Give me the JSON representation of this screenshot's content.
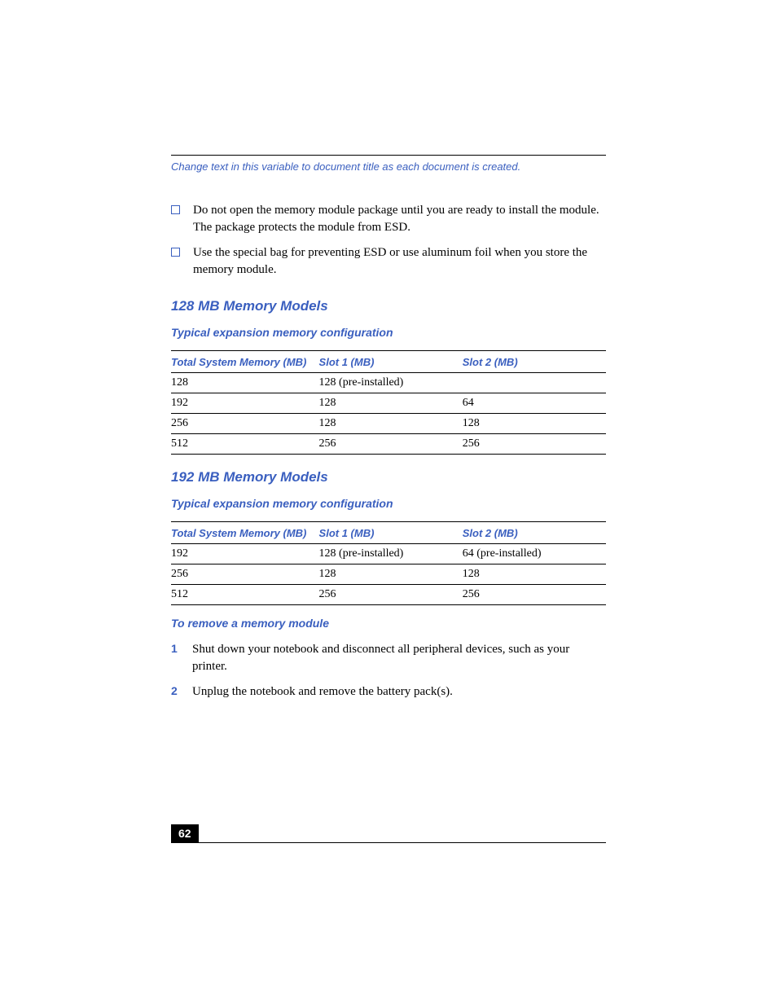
{
  "colors": {
    "accent": "#3a5fbf",
    "text": "#000000",
    "background": "#ffffff",
    "rule": "#000000"
  },
  "header": {
    "variable_text": "Change text in this variable to document title as each document is created."
  },
  "bullets": [
    "Do not open the memory module package until you are ready to install the module. The package protects the module from ESD.",
    "Use the special bag for preventing ESD or use aluminum foil when you store the memory module."
  ],
  "section1": {
    "title": "128 MB Memory Models",
    "subtitle": "Typical expansion memory configuration",
    "table": {
      "columns": [
        "Total System Memory (MB)",
        "Slot 1 (MB)",
        "Slot 2 (MB)"
      ],
      "rows": [
        [
          "128",
          "128 (pre-installed)",
          ""
        ],
        [
          "192",
          "128",
          "64"
        ],
        [
          "256",
          "128",
          "128"
        ],
        [
          "512",
          "256",
          "256"
        ]
      ]
    }
  },
  "section2": {
    "title": "192 MB Memory Models",
    "subtitle": "Typical expansion memory configuration",
    "table": {
      "columns": [
        "Total System Memory (MB)",
        "Slot 1 (MB)",
        "Slot 2 (MB)"
      ],
      "rows": [
        [
          "192",
          "128 (pre-installed)",
          "64 (pre-installed)"
        ],
        [
          "256",
          "128",
          "128"
        ],
        [
          "512",
          "256",
          "256"
        ]
      ]
    }
  },
  "procedure": {
    "title": "To remove a memory module",
    "steps": [
      "Shut down your notebook and disconnect all peripheral devices, such as your printer.",
      "Unplug the notebook and remove the battery pack(s)."
    ]
  },
  "footer": {
    "page_number": "62"
  }
}
